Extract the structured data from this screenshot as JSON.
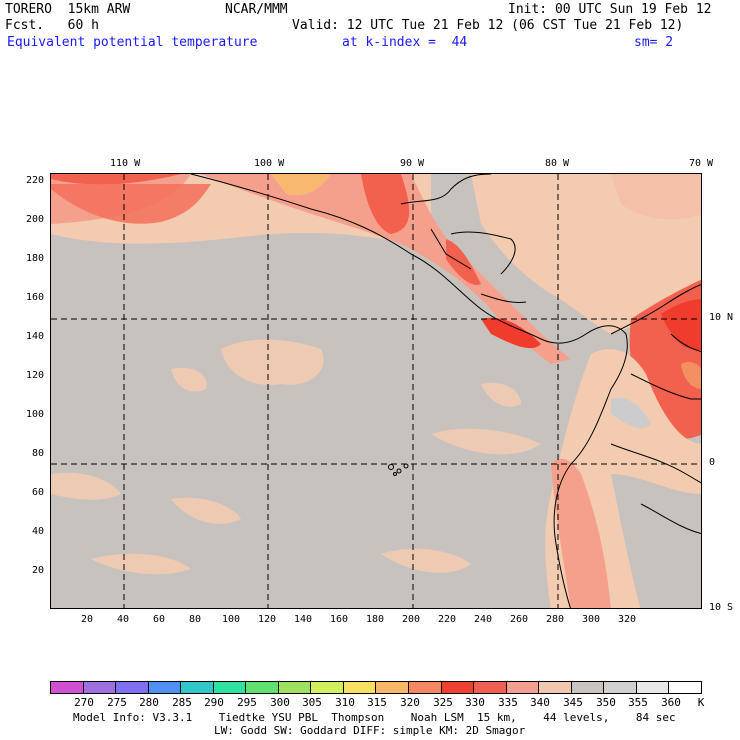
{
  "header": {
    "line1_left": "TORERO  15km ARW",
    "line1_center": "NCAR/MMM",
    "line1_right": "Init: 00 UTC Sun 19 Feb 12",
    "line2_left": "Fcst.   60 h",
    "line2_right": "Valid: 12 UTC Tue 21 Feb 12 (06 CST Tue 21 Feb 12)",
    "line3_left": "Equivalent potential temperature",
    "line3_center": "at k-index =  44",
    "line3_right": "sm= 2"
  },
  "map": {
    "lon_labels": [
      "110 W",
      "100 W",
      "90 W",
      "80 W",
      "70 W"
    ],
    "lat_labels": [
      "10 N",
      "0",
      "10 S"
    ],
    "y_ticks": [
      "220",
      "200",
      "180",
      "160",
      "140",
      "120",
      "100",
      "80",
      "60",
      "40",
      "20"
    ],
    "x_ticks": [
      "20",
      "40",
      "60",
      "80",
      "100",
      "120",
      "140",
      "160",
      "180",
      "200",
      "220",
      "240",
      "260",
      "280",
      "300",
      "320"
    ],
    "colors": {
      "background": "#c8c2be",
      "light_orange": "#f2cbb1",
      "salmon": "#f4a08c",
      "red": "#f2604e",
      "bright_red": "#f03c2c",
      "orange": "#f49060",
      "yellow_orange": "#f8b870",
      "grey": "#cccccc"
    }
  },
  "colorbar": {
    "labels": [
      "270",
      "275",
      "280",
      "285",
      "290",
      "295",
      "300",
      "305",
      "310",
      "315",
      "320",
      "325",
      "330",
      "335",
      "340",
      "345",
      "350",
      "355",
      "360"
    ],
    "unit": "K",
    "colors": [
      "#d050d0",
      "#a070e0",
      "#8070f0",
      "#5090f0",
      "#30c8c8",
      "#30e0a0",
      "#60e070",
      "#a0e060",
      "#d0f060",
      "#f8e060",
      "#f8b868",
      "#f48860",
      "#f04030",
      "#f06050",
      "#f4a090",
      "#f0c8b0",
      "#cac4c0",
      "#d0d0d0",
      "#e8e8e8",
      "#ffffff"
    ]
  },
  "footer": {
    "line1": "Model Info: V3.3.1    Tiedtke YSU PBL  Thompson    Noah LSM  15 km,    44 levels,    84 sec",
    "line2": "LW: Godd SW: Goddard DIFF: simple KM: 2D Smagor"
  }
}
